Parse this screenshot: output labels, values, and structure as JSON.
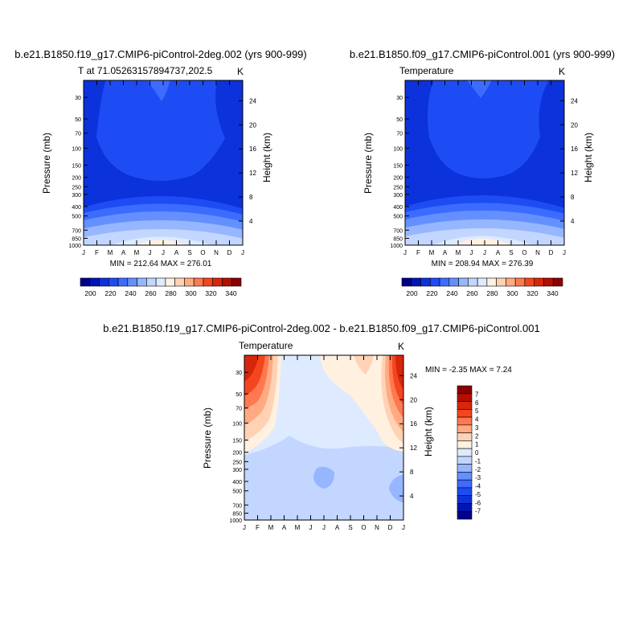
{
  "colors": {
    "scale_abs": [
      "#00008b",
      "#0016b4",
      "#0c32dc",
      "#1e4cf4",
      "#3c6cff",
      "#6490ff",
      "#96b6ff",
      "#c2d6ff",
      "#ddeaff",
      "#fff0e0",
      "#ffd2b4",
      "#ffaa82",
      "#ff7850",
      "#f4461e",
      "#d8260a",
      "#b40e00",
      "#8b0000"
    ],
    "scale_diff": [
      "#00008b",
      "#0016b4",
      "#0c32dc",
      "#1e4cf4",
      "#3c6cff",
      "#6490ff",
      "#96b6ff",
      "#c2d6ff",
      "#ddeaff",
      "#fff0e0",
      "#ffd2b4",
      "#ffaa82",
      "#ff7850",
      "#f4461e",
      "#d8260a",
      "#b40e00",
      "#8b0000"
    ]
  },
  "chart_data": [
    {
      "id": "top_left",
      "type": "heatmap",
      "title": "b.e21.B1850.f19_g17.CMIP6-piControl-2deg.002 (yrs 900-999)",
      "left_string": "T at 71.05263157894737,202.5",
      "right_string": "K",
      "ylabel": "Pressure (mb)",
      "ylabel_right": "Height (km)",
      "xlabel": "",
      "x_ticklabels": [
        "J",
        "F",
        "M",
        "A",
        "M",
        "J",
        "J",
        "A",
        "S",
        "O",
        "N",
        "D",
        "J"
      ],
      "y_ticklabels": [
        "30",
        "50",
        "70",
        "100",
        "150",
        "200",
        "250",
        "300",
        "400",
        "500",
        "700",
        "850",
        "1000"
      ],
      "y_ticks_mb": [
        30,
        50,
        70,
        100,
        150,
        200,
        250,
        300,
        400,
        500,
        700,
        850,
        1000
      ],
      "right_ticklabels": [
        "4",
        "8",
        "12",
        "16",
        "20",
        "24"
      ],
      "right_ticks_km": [
        4,
        8,
        12,
        16,
        20,
        24
      ],
      "ylim_mb": [
        1000,
        20
      ],
      "min_max_text": "MIN = 212.64   MAX = 276.01",
      "min": 212.64,
      "max": 276.01,
      "contour_levels": [
        195,
        200,
        205,
        210,
        215,
        220,
        225,
        230,
        235,
        240,
        245,
        250,
        255,
        260,
        265,
        270,
        275,
        280
      ],
      "colorbar": {
        "orientation": "horizontal",
        "tick_labels": [
          "200",
          "220",
          "240",
          "260",
          "280",
          "300",
          "320",
          "340"
        ],
        "tick_values": [
          200,
          220,
          240,
          260,
          280,
          300,
          320,
          340
        ],
        "range": [
          190,
          350
        ]
      }
    },
    {
      "id": "top_right",
      "type": "heatmap",
      "title": "b.e21.B1850.f09_g17.CMIP6-piControl.001 (yrs 900-999)",
      "left_string": "Temperature",
      "right_string": "K",
      "ylabel": "Pressure (mb)",
      "ylabel_right": "Height (km)",
      "xlabel": "",
      "x_ticklabels": [
        "J",
        "F",
        "M",
        "A",
        "M",
        "J",
        "J",
        "A",
        "S",
        "O",
        "N",
        "D",
        "J"
      ],
      "y_ticklabels": [
        "30",
        "50",
        "70",
        "100",
        "150",
        "200",
        "250",
        "300",
        "400",
        "500",
        "700",
        "850",
        "1000"
      ],
      "y_ticks_mb": [
        30,
        50,
        70,
        100,
        150,
        200,
        250,
        300,
        400,
        500,
        700,
        850,
        1000
      ],
      "right_ticklabels": [
        "4",
        "8",
        "12",
        "16",
        "20",
        "24"
      ],
      "right_ticks_km": [
        4,
        8,
        12,
        16,
        20,
        24
      ],
      "ylim_mb": [
        1000,
        20
      ],
      "min_max_text": "MIN = 208.94   MAX = 276.39",
      "min": 208.94,
      "max": 276.39,
      "contour_levels": [
        195,
        200,
        205,
        210,
        215,
        220,
        225,
        230,
        235,
        240,
        245,
        250,
        255,
        260,
        265,
        270,
        275,
        280
      ],
      "colorbar": {
        "orientation": "horizontal",
        "tick_labels": [
          "200",
          "220",
          "240",
          "260",
          "280",
          "300",
          "320",
          "340"
        ],
        "tick_values": [
          200,
          220,
          240,
          260,
          280,
          300,
          320,
          340
        ],
        "range": [
          190,
          350
        ]
      }
    },
    {
      "id": "bottom_diff",
      "type": "heatmap",
      "title": "b.e21.B1850.f19_g17.CMIP6-piControl-2deg.002 - b.e21.B1850.f09_g17.CMIP6-piControl.001",
      "left_string": "Temperature",
      "right_string": "K",
      "ylabel": "Pressure (mb)",
      "ylabel_right": "Height (km)",
      "xlabel": "",
      "x_ticklabels": [
        "J",
        "F",
        "M",
        "A",
        "M",
        "J",
        "J",
        "A",
        "S",
        "O",
        "N",
        "D",
        "J"
      ],
      "y_ticklabels": [
        "30",
        "50",
        "70",
        "100",
        "150",
        "200",
        "250",
        "300",
        "400",
        "500",
        "700",
        "850",
        "1000"
      ],
      "y_ticks_mb": [
        30,
        50,
        70,
        100,
        150,
        200,
        250,
        300,
        400,
        500,
        700,
        850,
        1000
      ],
      "right_ticklabels": [
        "4",
        "8",
        "12",
        "16",
        "20",
        "24"
      ],
      "right_ticks_km": [
        4,
        8,
        12,
        16,
        20,
        24
      ],
      "ylim_mb": [
        1000,
        20
      ],
      "min_max_text": "MIN =  -2.35   MAX =    7.24",
      "min": -2.35,
      "max": 7.24,
      "contour_levels": [
        -7,
        -6,
        -5,
        -4,
        -3,
        -2,
        -1,
        0,
        1,
        2,
        3,
        4,
        5,
        6,
        7
      ],
      "colorbar": {
        "orientation": "vertical",
        "tick_labels": [
          "7",
          "6",
          "5",
          "4",
          "3",
          "2",
          "1",
          "0",
          "-1",
          "-2",
          "-3",
          "-4",
          "-5",
          "-6",
          "-7"
        ],
        "tick_values": [
          7,
          6,
          5,
          4,
          3,
          2,
          1,
          0,
          -1,
          -2,
          -3,
          -4,
          -5,
          -6,
          -7
        ],
        "range": [
          -8,
          8
        ]
      }
    }
  ]
}
